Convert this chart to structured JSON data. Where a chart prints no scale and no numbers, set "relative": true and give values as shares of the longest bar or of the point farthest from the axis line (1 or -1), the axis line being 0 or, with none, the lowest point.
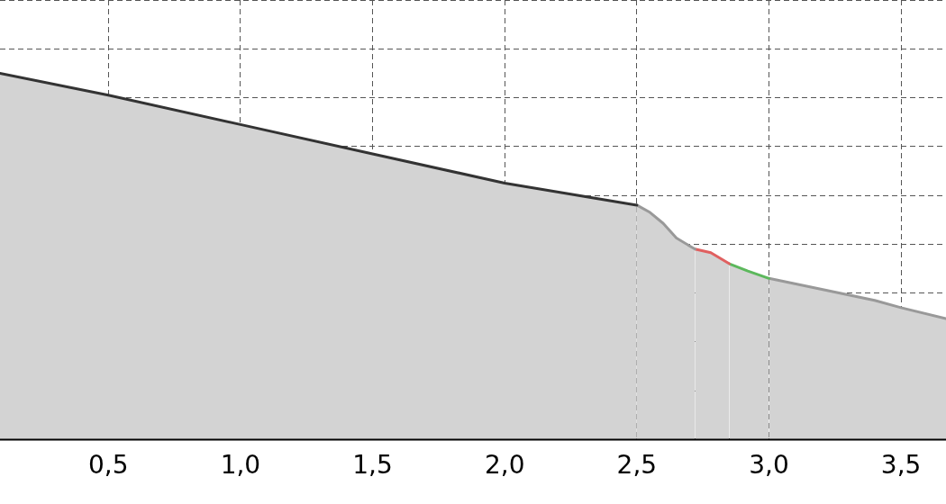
{
  "chart_data": {
    "type": "area",
    "relative": true,
    "grid": true,
    "legend": false,
    "marker": "none",
    "line_style": "solid",
    "xlim": [
      0.09,
      3.67
    ],
    "xticks": [
      {
        "value": 0.5,
        "label": "0,5"
      },
      {
        "value": 1,
        "label": "1,0"
      },
      {
        "value": 1.5,
        "label": "1,5"
      },
      {
        "value": 2,
        "label": "2,0"
      },
      {
        "value": 2.5,
        "label": "2,5"
      },
      {
        "value": 3,
        "label": "3,0"
      },
      {
        "value": 3.5,
        "label": "3,5"
      }
    ],
    "series": [
      {
        "color": "#333333",
        "x": [
          0.09,
          0.5,
          1,
          1.5,
          2,
          2.5
        ],
        "values": [
          1,
          0.94,
          0.86,
          0.78,
          0.7,
          0.64
        ]
      },
      {
        "color": "#999999",
        "x": [
          2.5,
          2.55,
          2.6,
          2.65,
          2.72
        ],
        "values": [
          0.64,
          0.62,
          0.59,
          0.55,
          0.52
        ]
      },
      {
        "color": "#e06060",
        "x": [
          2.72,
          2.78,
          2.85
        ],
        "values": [
          0.52,
          0.51,
          0.48
        ]
      },
      {
        "color": "#5cb85c",
        "x": [
          2.85,
          2.92,
          3
        ],
        "values": [
          0.48,
          0.46,
          0.44
        ]
      },
      {
        "color": "#999999",
        "x": [
          3,
          3.2,
          3.4,
          3.5,
          3.67
        ],
        "values": [
          0.44,
          0.41,
          0.38,
          0.36,
          0.33
        ]
      }
    ]
  }
}
